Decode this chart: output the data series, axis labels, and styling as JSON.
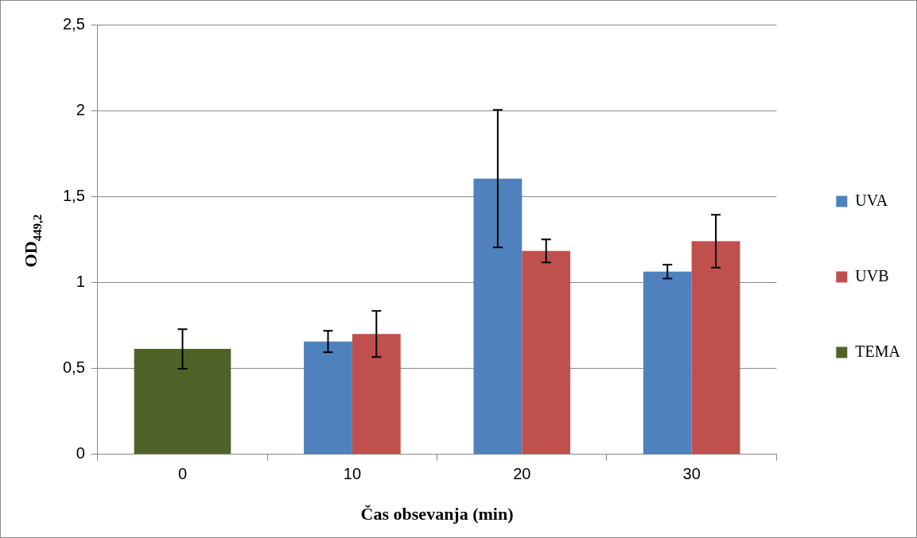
{
  "chart_data": {
    "type": "bar",
    "xlabel": "Čas obsevanja (min)",
    "ylabel": "OD$_{449,2}$",
    "categories": [
      "0",
      "10",
      "20",
      "30"
    ],
    "series": [
      {
        "name": "UVA",
        "color": "#4f81bd",
        "values": [
          null,
          0.656,
          1.604,
          1.063
        ],
        "errors": [
          null,
          0.062,
          0.4,
          0.04
        ]
      },
      {
        "name": "UVB",
        "color": "#c0504d",
        "values": [
          null,
          0.7,
          1.183,
          1.24
        ],
        "errors": [
          null,
          0.134,
          0.067,
          0.154
        ]
      },
      {
        "name": "TEMA",
        "color": "#4f6228",
        "values": [
          0.613,
          null,
          null,
          null
        ],
        "errors": [
          0.115,
          null,
          null,
          null
        ]
      }
    ],
    "ylim": [
      0,
      2.5
    ],
    "yticks": [
      0,
      {
        "value": 0.5,
        "label": "0,5"
      },
      1,
      {
        "value": 1.5,
        "label": "1,5"
      },
      2,
      {
        "value": 2.5,
        "label": "2,5"
      }
    ],
    "grid": "y",
    "legend": "right"
  }
}
